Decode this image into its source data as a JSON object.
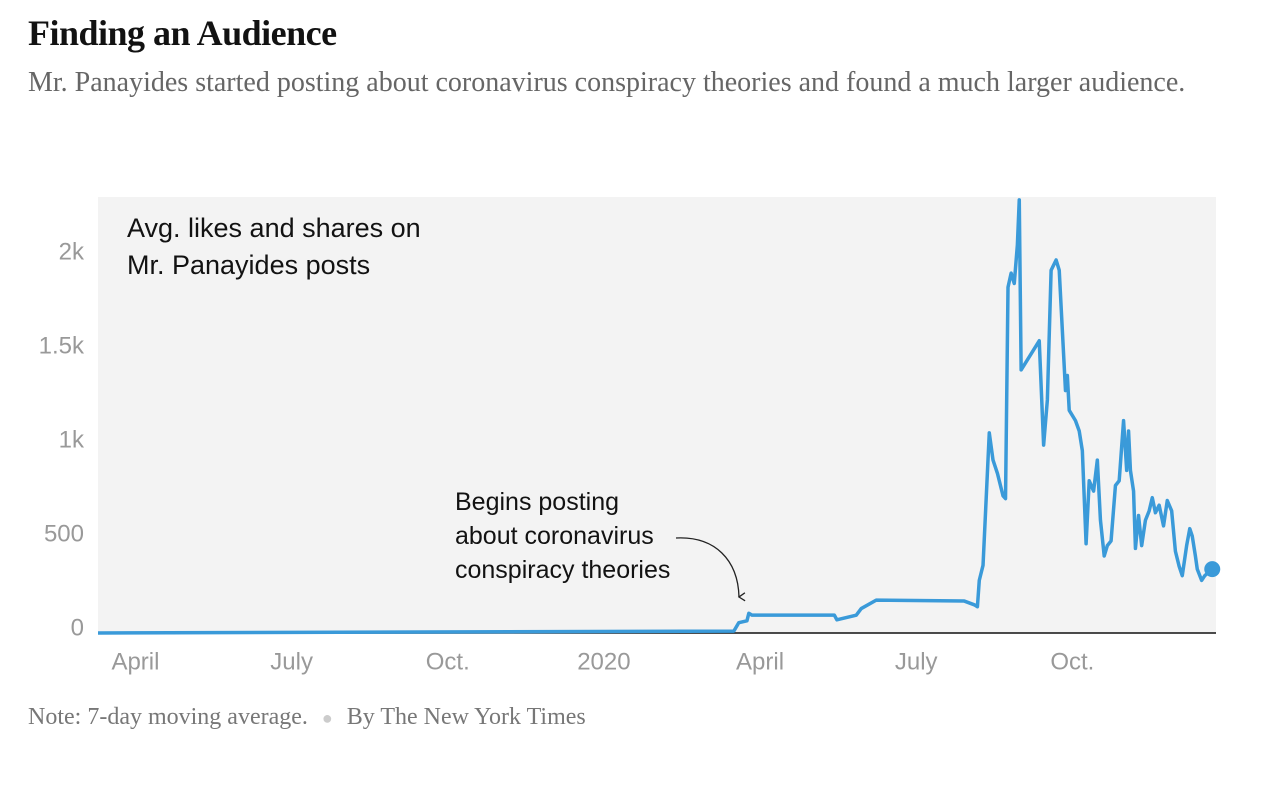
{
  "chart_data": {
    "type": "line",
    "title": "Finding an Audience",
    "subtitle": "Mr. Panayides started posting about coronavirus conspiracy theories and found a much larger audience.",
    "y_label": [
      "Avg. likes and shares on",
      "Mr. Panayides posts"
    ],
    "annotation": [
      "Begins posting",
      "about coronavirus",
      "conspiracy theories"
    ],
    "note": "Note: 7-day moving average.",
    "credit": "By The New York Times",
    "xlim": [
      2019.19,
      2020.98
    ],
    "xticks": [
      {
        "value": 2019.25,
        "label": "April"
      },
      {
        "value": 2019.5,
        "label": "July"
      },
      {
        "value": 2019.75,
        "label": "Oct."
      },
      2020,
      {
        "value": 2020.25,
        "label": "April"
      },
      {
        "value": 2020.5,
        "label": "July"
      },
      {
        "value": 2020.75,
        "label": "Oct."
      }
    ],
    "ylim": [
      0,
      2320
    ],
    "yticks": [
      0,
      500,
      {
        "value": 1000,
        "label": "1k"
      },
      {
        "value": 1500,
        "label": "1.5k"
      },
      {
        "value": 2000,
        "label": "2k"
      }
    ],
    "grid": false,
    "background": "#f3f3f3",
    "x": [
      2019.19,
      2020.208,
      2020.216,
      2020.229,
      2020.232,
      2020.237,
      2020.369,
      2020.373,
      2020.404,
      2020.412,
      2020.436,
      2020.577,
      2020.593,
      2020.598,
      2020.601,
      2020.607,
      2020.617,
      2020.623,
      2020.63,
      2020.639,
      2020.643,
      2020.647,
      2020.652,
      2020.657,
      2020.662,
      2020.665,
      2020.668,
      2020.697,
      2020.704,
      2020.71,
      2020.716,
      2020.724,
      2020.729,
      2020.734,
      2020.739,
      2020.742,
      2020.745,
      2020.755,
      2020.761,
      2020.766,
      2020.772,
      2020.777,
      2020.784,
      2020.79,
      2020.795,
      2020.801,
      2020.806,
      2020.812,
      2020.819,
      2020.825,
      2020.832,
      2020.837,
      2020.84,
      2020.843,
      2020.848,
      2020.851,
      2020.856,
      2020.861,
      2020.867,
      2020.873,
      2020.878,
      2020.883,
      2020.889,
      2020.896,
      2020.902,
      2020.909,
      2020.915,
      2020.921,
      2020.926,
      2020.933,
      2020.938,
      2020.942,
      2020.947,
      2020.95,
      2020.957,
      2020.962,
      2020.974
    ],
    "series": [
      {
        "color": "#3a9ad9",
        "values": [
          0,
          10,
          55,
          65,
          105,
          95,
          95,
          70,
          95,
          130,
          175,
          170,
          150,
          140,
          280,
          360,
          1065,
          920,
          850,
          730,
          715,
          1840,
          1915,
          1860,
          2065,
          2305,
          1400,
          1555,
          1000,
          1240,
          1930,
          1985,
          1930,
          1610,
          1290,
          1370,
          1185,
          1130,
          1075,
          970,
          475,
          810,
          755,
          920,
          600,
          410,
          465,
          490,
          785,
          810,
          1130,
          865,
          1075,
          865,
          755,
          450,
          625,
          465,
          600,
          650,
          720,
          640,
          680,
          570,
          705,
          650,
          435,
          355,
          305,
          465,
          555,
          515,
          410,
          340,
          280,
          305,
          340
        ]
      }
    ]
  }
}
